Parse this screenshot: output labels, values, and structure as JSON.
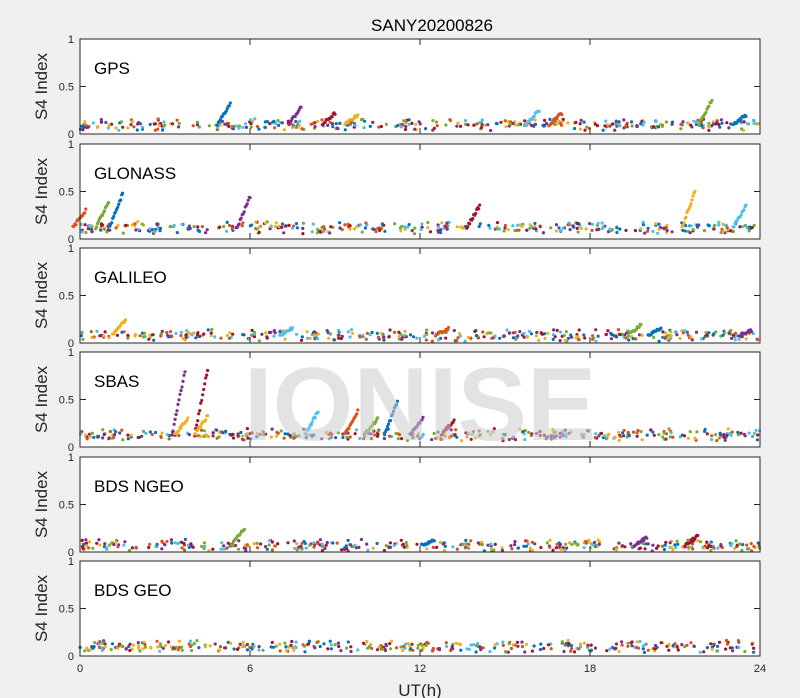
{
  "figure": {
    "title": "SANY20200826",
    "xlabel": "UT(h)",
    "watermark": "IONISE"
  },
  "colors": {
    "background": "#f0f0f0",
    "axes_face": "#ffffff",
    "axes_edge": "#262626",
    "series": [
      "#0072bd",
      "#d95319",
      "#edb120",
      "#7e2f8e",
      "#77ac30",
      "#4dbeee",
      "#a2142f"
    ]
  },
  "chart_data": {
    "type": "scatter",
    "x_ticks": [
      0,
      6,
      12,
      18,
      24
    ],
    "x_range": [
      0,
      24
    ],
    "y_ticks": [
      0,
      0.5,
      1
    ],
    "y_range": [
      0,
      1
    ],
    "ylabel": "S4 Index",
    "grid": false,
    "panels": [
      {
        "label": "GPS",
        "baseline": 0.1,
        "events": [
          {
            "x": 5.3,
            "y": 0.32
          },
          {
            "x": 7.8,
            "y": 0.28
          },
          {
            "x": 9.0,
            "y": 0.22
          },
          {
            "x": 9.8,
            "y": 0.2
          },
          {
            "x": 16.2,
            "y": 0.25
          },
          {
            "x": 17.0,
            "y": 0.22
          },
          {
            "x": 22.3,
            "y": 0.36
          },
          {
            "x": 23.5,
            "y": 0.2
          }
        ]
      },
      {
        "label": "GLONASS",
        "baseline": 0.12,
        "events": [
          {
            "x": 0.2,
            "y": 0.3
          },
          {
            "x": 1.0,
            "y": 0.38
          },
          {
            "x": 1.5,
            "y": 0.48
          },
          {
            "x": 6.0,
            "y": 0.45
          },
          {
            "x": 14.1,
            "y": 0.35
          },
          {
            "x": 21.7,
            "y": 0.5
          },
          {
            "x": 23.5,
            "y": 0.35
          }
        ]
      },
      {
        "label": "GALILEO",
        "baseline": 0.08,
        "events": [
          {
            "x": 1.6,
            "y": 0.24
          },
          {
            "x": 7.5,
            "y": 0.16
          },
          {
            "x": 13.0,
            "y": 0.15
          },
          {
            "x": 19.8,
            "y": 0.2
          },
          {
            "x": 20.5,
            "y": 0.15
          },
          {
            "x": 23.7,
            "y": 0.13
          }
        ]
      },
      {
        "label": "SBAS",
        "baseline": 0.13,
        "events": [
          {
            "x": 3.7,
            "y": 0.8
          },
          {
            "x": 4.5,
            "y": 0.82
          },
          {
            "x": 4.5,
            "y": 0.33
          },
          {
            "x": 8.4,
            "y": 0.38
          },
          {
            "x": 9.8,
            "y": 0.38
          },
          {
            "x": 10.5,
            "y": 0.3
          },
          {
            "x": 11.2,
            "y": 0.48
          },
          {
            "x": 12.1,
            "y": 0.3
          },
          {
            "x": 13.2,
            "y": 0.28
          },
          {
            "x": 3.8,
            "y": 0.3
          }
        ]
      },
      {
        "label": "BDS NGEO",
        "baseline": 0.07,
        "events": [
          {
            "x": 5.8,
            "y": 0.25
          },
          {
            "x": 12.5,
            "y": 0.12
          },
          {
            "x": 20.0,
            "y": 0.15
          },
          {
            "x": 21.8,
            "y": 0.17
          }
        ]
      },
      {
        "label": "BDS GEO",
        "baseline": 0.1,
        "events": []
      }
    ]
  }
}
